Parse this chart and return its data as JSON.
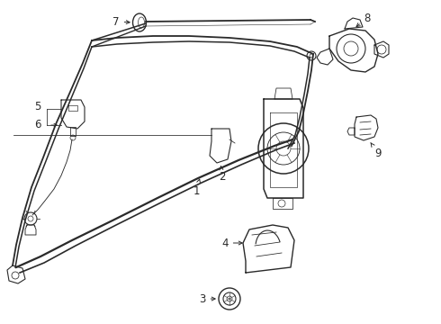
{
  "bg_color": "#ffffff",
  "line_color": "#2a2a2a",
  "lw": 0.8,
  "figsize": [
    4.9,
    3.6
  ],
  "dpi": 100,
  "label_fontsize": 8.5
}
